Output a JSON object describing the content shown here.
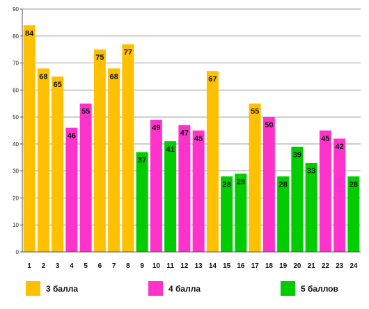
{
  "chart_data": {
    "type": "bar",
    "categories": [
      "1",
      "2",
      "3",
      "4",
      "5",
      "6",
      "7",
      "8",
      "9",
      "10",
      "11",
      "12",
      "13",
      "14",
      "15",
      "16",
      "17",
      "18",
      "19",
      "20",
      "21",
      "22",
      "23",
      "24"
    ],
    "values": [
      84,
      68,
      65,
      46,
      55,
      75,
      68,
      77,
      37,
      49,
      41,
      47,
      45,
      67,
      28,
      29,
      55,
      50,
      28,
      39,
      33,
      45,
      42,
      28
    ],
    "groups": [
      "3",
      "3",
      "3",
      "4",
      "4",
      "3",
      "3",
      "3",
      "5",
      "4",
      "5",
      "4",
      "4",
      "3",
      "5",
      "5",
      "3",
      "4",
      "5",
      "5",
      "5",
      "4",
      "4",
      "5"
    ],
    "ylim": [
      0,
      90
    ],
    "yticks": [
      0,
      10,
      20,
      30,
      40,
      50,
      60,
      70,
      80,
      90
    ],
    "grid": true,
    "legend_position": "bottom",
    "colors": {
      "3": "#FFC000",
      "4": "#FF33CC",
      "5": "#00CC00"
    },
    "legend": [
      {
        "key": "3",
        "label": "3 балла",
        "color": "#FFC000"
      },
      {
        "key": "4",
        "label": "4 балла",
        "color": "#FF33CC"
      },
      {
        "key": "5",
        "label": "5 баллов",
        "color": "#00CC00"
      }
    ]
  }
}
